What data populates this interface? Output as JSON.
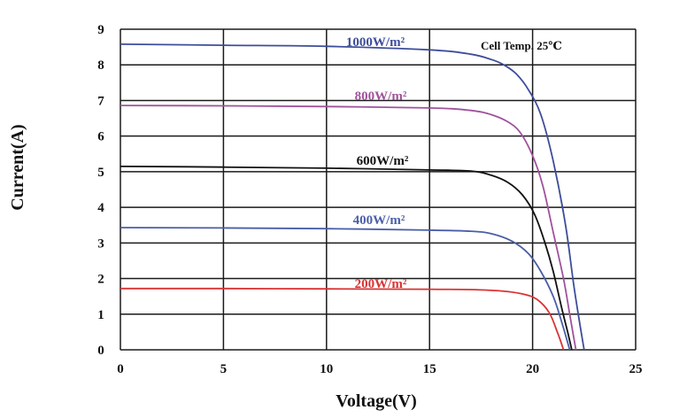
{
  "chart_data": {
    "type": "line",
    "xlabel": "Voltage(V)",
    "ylabel": "Current(A)",
    "xlim": [
      0,
      25
    ],
    "ylim": [
      0,
      9
    ],
    "x_ticks": [
      "0",
      "5",
      "10",
      "15",
      "20",
      "25"
    ],
    "y_ticks": [
      "0",
      "1",
      "2",
      "3",
      "4",
      "5",
      "6",
      "7",
      "8",
      "9"
    ],
    "grid": true,
    "annotation": "Cell Temp. 25℃",
    "series": [
      {
        "name": "1000W/m²",
        "color": "#3d4d9a",
        "points": [
          [
            0,
            8.58
          ],
          [
            5,
            8.55
          ],
          [
            10,
            8.52
          ],
          [
            15,
            8.42
          ],
          [
            17,
            8.3
          ],
          [
            18,
            8.15
          ],
          [
            18.6,
            8.0
          ],
          [
            19.2,
            7.75
          ],
          [
            19.8,
            7.3
          ],
          [
            20.4,
            6.6
          ],
          [
            21.0,
            5.3
          ],
          [
            21.6,
            3.5
          ],
          [
            22.0,
            1.8
          ],
          [
            22.3,
            0.7
          ],
          [
            22.5,
            0.0
          ]
        ]
      },
      {
        "name": "800W/m²",
        "color": "#a0529c",
        "points": [
          [
            0,
            6.86
          ],
          [
            5,
            6.85
          ],
          [
            10,
            6.83
          ],
          [
            15,
            6.79
          ],
          [
            17,
            6.72
          ],
          [
            18,
            6.6
          ],
          [
            18.8,
            6.4
          ],
          [
            19.4,
            6.1
          ],
          [
            20.0,
            5.45
          ],
          [
            20.5,
            4.6
          ],
          [
            21.0,
            3.3
          ],
          [
            21.5,
            2.0
          ],
          [
            21.8,
            1.0
          ],
          [
            22.1,
            0.0
          ]
        ]
      },
      {
        "name": "600W/m²",
        "color": "#111111",
        "points": [
          [
            0,
            5.15
          ],
          [
            5,
            5.13
          ],
          [
            10,
            5.1
          ],
          [
            15,
            5.05
          ],
          [
            17,
            5.02
          ],
          [
            18,
            4.9
          ],
          [
            18.8,
            4.7
          ],
          [
            19.5,
            4.35
          ],
          [
            20.1,
            3.8
          ],
          [
            20.6,
            3.0
          ],
          [
            21.0,
            2.2
          ],
          [
            21.4,
            1.2
          ],
          [
            21.7,
            0.5
          ],
          [
            21.9,
            0.0
          ]
        ]
      },
      {
        "name": "400W/m²",
        "color": "#4a5ea8",
        "points": [
          [
            0,
            3.43
          ],
          [
            5,
            3.42
          ],
          [
            10,
            3.4
          ],
          [
            15,
            3.36
          ],
          [
            17,
            3.33
          ],
          [
            18,
            3.26
          ],
          [
            19,
            3.05
          ],
          [
            19.8,
            2.7
          ],
          [
            20.4,
            2.2
          ],
          [
            21.0,
            1.5
          ],
          [
            21.4,
            0.8
          ],
          [
            21.8,
            0.0
          ]
        ]
      },
      {
        "name": "200W/m²",
        "color": "#d93333",
        "points": [
          [
            0,
            1.72
          ],
          [
            5,
            1.72
          ],
          [
            10,
            1.71
          ],
          [
            15,
            1.7
          ],
          [
            17,
            1.69
          ],
          [
            18.5,
            1.65
          ],
          [
            19.5,
            1.57
          ],
          [
            20.2,
            1.42
          ],
          [
            20.8,
            1.05
          ],
          [
            21.2,
            0.5
          ],
          [
            21.5,
            0.0
          ]
        ]
      }
    ]
  }
}
